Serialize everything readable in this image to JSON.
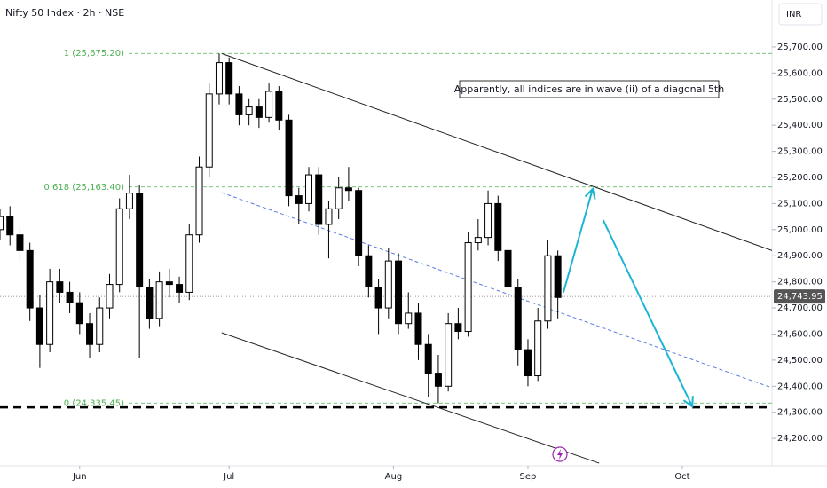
{
  "chart_data": {
    "type": "candlestick",
    "title": "Nifty 50 Index · 2h · NSE",
    "currency": "INR",
    "annotation": "Apparently, all indices are in wave (ii) of a diagonal 5th",
    "x": [
      0,
      2,
      4,
      6,
      8,
      10,
      12,
      14,
      16,
      18,
      20,
      22,
      24,
      26,
      28,
      30,
      32,
      34,
      36,
      38,
      40,
      42,
      44,
      46,
      48,
      50,
      52,
      54,
      56,
      58,
      60,
      62,
      64,
      66,
      68,
      70,
      72,
      74,
      76,
      78,
      80,
      82,
      84,
      86,
      88,
      90,
      92,
      94,
      96,
      98,
      100,
      102,
      104,
      106,
      108,
      110,
      112
    ],
    "open": [
      25000,
      25050,
      24980,
      24920,
      24700,
      24560,
      24800,
      24760,
      24720,
      24640,
      24560,
      24700,
      24790,
      25080,
      25140,
      24780,
      24660,
      24800,
      24790,
      24760,
      24980,
      25240,
      25520,
      25640,
      25520,
      25440,
      25470,
      25430,
      25530,
      25420,
      25130,
      25100,
      25210,
      25020,
      25080,
      25160,
      25150,
      24900,
      24780,
      24700,
      24880,
      24640,
      24680,
      24560,
      24450,
      24400,
      24640,
      24610,
      24950,
      24970,
      25100,
      24920,
      24780,
      24540,
      24440,
      24650,
      24900
    ],
    "high": [
      25080,
      25090,
      25010,
      24950,
      24750,
      24850,
      24850,
      24800,
      24760,
      24680,
      24740,
      24830,
      25120,
      25210,
      25170,
      24810,
      24840,
      24850,
      24820,
      25020,
      25280,
      25560,
      25675,
      25660,
      25550,
      25500,
      25500,
      25560,
      25550,
      25440,
      25160,
      25240,
      25240,
      25110,
      25200,
      25240,
      25160,
      24940,
      24810,
      24930,
      24910,
      24760,
      24720,
      24600,
      24520,
      24680,
      24700,
      24990,
      25040,
      25150,
      25130,
      24960,
      24810,
      24580,
      24700,
      24960,
      24920
    ],
    "low": [
      24960,
      24940,
      24880,
      24650,
      24470,
      24530,
      24720,
      24680,
      24600,
      24510,
      24530,
      24660,
      24760,
      25040,
      24510,
      24620,
      24630,
      24740,
      24720,
      24730,
      24950,
      25200,
      25480,
      25480,
      25400,
      25400,
      25390,
      25410,
      25380,
      25090,
      25020,
      25070,
      24980,
      24890,
      25040,
      25110,
      24860,
      24740,
      24600,
      24660,
      24600,
      24620,
      24500,
      24360,
      24335,
      24380,
      24580,
      24590,
      24920,
      24940,
      24880,
      24740,
      24480,
      24400,
      24420,
      24620,
      24660
    ],
    "close": [
      25050,
      24980,
      24920,
      24700,
      24560,
      24800,
      24760,
      24720,
      24640,
      24560,
      24700,
      24790,
      25080,
      25140,
      24780,
      24660,
      24800,
      24790,
      24760,
      24980,
      25240,
      25520,
      25640,
      25520,
      25440,
      25470,
      25430,
      25530,
      25420,
      25130,
      25100,
      25210,
      25020,
      25080,
      25160,
      25150,
      24900,
      24780,
      24700,
      24880,
      24640,
      24680,
      24560,
      24450,
      24400,
      24640,
      24610,
      24950,
      24970,
      25100,
      24920,
      24780,
      24540,
      24440,
      24650,
      24900,
      24740
    ],
    "up_color": "#ffffff",
    "down_color": "#000000",
    "xlim": [
      0,
      155
    ],
    "ylim": [
      24112,
      25880
    ],
    "xticks": [
      {
        "value": 16,
        "label": "Jun"
      },
      {
        "value": 46,
        "label": "Jul"
      },
      {
        "value": 79,
        "label": "Aug"
      },
      {
        "value": 106,
        "label": "Sep"
      },
      {
        "value": 137,
        "label": "Oct"
      }
    ],
    "yticks": [
      {
        "value": 24200,
        "label": "24,200.00"
      },
      {
        "value": 24300,
        "label": "24,300.00"
      },
      {
        "value": 24400,
        "label": "24,400.00"
      },
      {
        "value": 24500,
        "label": "24,500.00"
      },
      {
        "value": 24600,
        "label": "24,600.00"
      },
      {
        "value": 24700,
        "label": "24,700.00"
      },
      {
        "value": 24800,
        "label": "24,800.00"
      },
      {
        "value": 24900,
        "label": "24,900.00"
      },
      {
        "value": 25000,
        "label": "25,000.00"
      },
      {
        "value": 25100,
        "label": "25,100.00"
      },
      {
        "value": 25200,
        "label": "25,200.00"
      },
      {
        "value": 25300,
        "label": "25,300.00"
      },
      {
        "value": 25400,
        "label": "25,400.00"
      },
      {
        "value": 25500,
        "label": "25,500.00"
      },
      {
        "value": 25600,
        "label": "25,600.00"
      },
      {
        "value": 25700,
        "label": "25,700.00"
      }
    ],
    "levels": [
      {
        "value": 25675.2,
        "label": "1 (25,675.20)",
        "color": "#4caf50"
      },
      {
        "value": 25163.4,
        "label": "0.618 (25,163.40)",
        "color": "#4caf50"
      },
      {
        "value": 24335.45,
        "label": "0 (24,335.45)",
        "color": "#4caf50"
      }
    ],
    "current_price": {
      "value": 24743.95,
      "label": "24,743.95"
    },
    "lines": [
      {
        "x": [
          44.5,
          155
        ],
        "y": [
          25675,
          24920
        ],
        "color": "#222222",
        "dash": false
      },
      {
        "x": [
          44.5,
          120.3
        ],
        "y": [
          24605,
          24105
        ],
        "color": "#222222",
        "dash": false
      },
      {
        "x": [
          44.5,
          155
        ],
        "y": [
          25142,
          24394
        ],
        "color": "#5b7be0",
        "dash": true
      },
      {
        "x": [
          0,
          155
        ],
        "y": [
          24319,
          24319
        ],
        "color": "#000000",
        "dash": true
      }
    ],
    "arrows": [
      {
        "x": [
          113.1,
          119
        ],
        "y": [
          24758,
          25156
        ],
        "color": "#1cb5d4"
      },
      {
        "x": [
          121.1,
          139
        ],
        "y": [
          25037,
          24322
        ],
        "color": "#1cb5d4"
      }
    ]
  }
}
